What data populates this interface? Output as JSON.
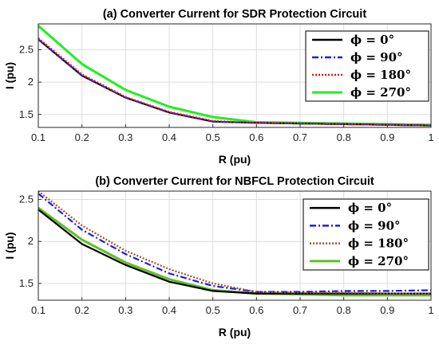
{
  "chart_data": [
    {
      "type": "line",
      "title": "(a) Converter Current for SDR Protection Circuit",
      "xlabel": "R (pu)",
      "ylabel": "I (pu)",
      "xlim": [
        0.1,
        1
      ],
      "ylim": [
        1.3,
        2.9
      ],
      "x_ticks": [
        "0.1",
        "0.2",
        "0.3",
        "0.4",
        "0.5",
        "0.6",
        "0.7",
        "0.8",
        "0.9",
        "1"
      ],
      "y_ticks": [
        "1.5",
        "2",
        "2.5"
      ],
      "grid": true,
      "legend_position": "top-right",
      "x": [
        0.1,
        0.2,
        0.3,
        0.4,
        0.5,
        0.6,
        0.7,
        0.8,
        0.9,
        1.0
      ],
      "series": [
        {
          "name": "ϕ = 0°",
          "color": "#000000",
          "style": "solid",
          "values": [
            2.66,
            2.1,
            1.76,
            1.53,
            1.39,
            1.37,
            1.36,
            1.35,
            1.34,
            1.33
          ]
        },
        {
          "name": "ϕ = 90°",
          "color": "#1f1fd6",
          "style": "dashdot",
          "values": [
            2.66,
            2.1,
            1.76,
            1.53,
            1.39,
            1.37,
            1.36,
            1.35,
            1.34,
            1.33
          ]
        },
        {
          "name": "ϕ = 180°",
          "color": "#e0181b",
          "style": "dotted",
          "values": [
            2.68,
            2.12,
            1.77,
            1.54,
            1.4,
            1.37,
            1.36,
            1.35,
            1.34,
            1.33
          ]
        },
        {
          "name": "ϕ = 270°",
          "color": "#22ee22",
          "style": "solid",
          "values": [
            2.87,
            2.28,
            1.88,
            1.62,
            1.46,
            1.38,
            1.37,
            1.36,
            1.35,
            1.34
          ]
        }
      ]
    },
    {
      "type": "line",
      "title": "(b) Converter Current for NBFCL Protection Circuit",
      "xlabel": "R (pu)",
      "ylabel": "I (pu)",
      "xlim": [
        0.1,
        1
      ],
      "ylim": [
        1.3,
        2.6
      ],
      "x_ticks": [
        "0.1",
        "0.2",
        "0.3",
        "0.4",
        "0.5",
        "0.6",
        "0.7",
        "0.8",
        "0.9",
        "1"
      ],
      "y_ticks": [
        "1.5",
        "2",
        "2.5"
      ],
      "grid": true,
      "legend_position": "top-right",
      "x": [
        0.1,
        0.2,
        0.3,
        0.4,
        0.5,
        0.6,
        0.7,
        0.8,
        0.9,
        1.0
      ],
      "series": [
        {
          "name": "ϕ = 0°",
          "color": "#000000",
          "style": "solid",
          "values": [
            2.38,
            1.97,
            1.72,
            1.52,
            1.41,
            1.38,
            1.38,
            1.38,
            1.38,
            1.38
          ]
        },
        {
          "name": "ϕ = 90°",
          "color": "#1f1fd6",
          "style": "dashdot",
          "values": [
            2.57,
            2.14,
            1.85,
            1.62,
            1.47,
            1.4,
            1.4,
            1.41,
            1.41,
            1.42
          ]
        },
        {
          "name": "ϕ = 180°",
          "color": "#a0522d",
          "style": "dotted",
          "values": [
            2.6,
            2.19,
            1.89,
            1.67,
            1.5,
            1.4,
            1.39,
            1.39,
            1.38,
            1.38
          ]
        },
        {
          "name": "ϕ = 270°",
          "color": "#5fbf24",
          "style": "solid",
          "values": [
            2.4,
            2.02,
            1.75,
            1.55,
            1.42,
            1.38,
            1.37,
            1.36,
            1.36,
            1.36
          ]
        }
      ]
    }
  ]
}
